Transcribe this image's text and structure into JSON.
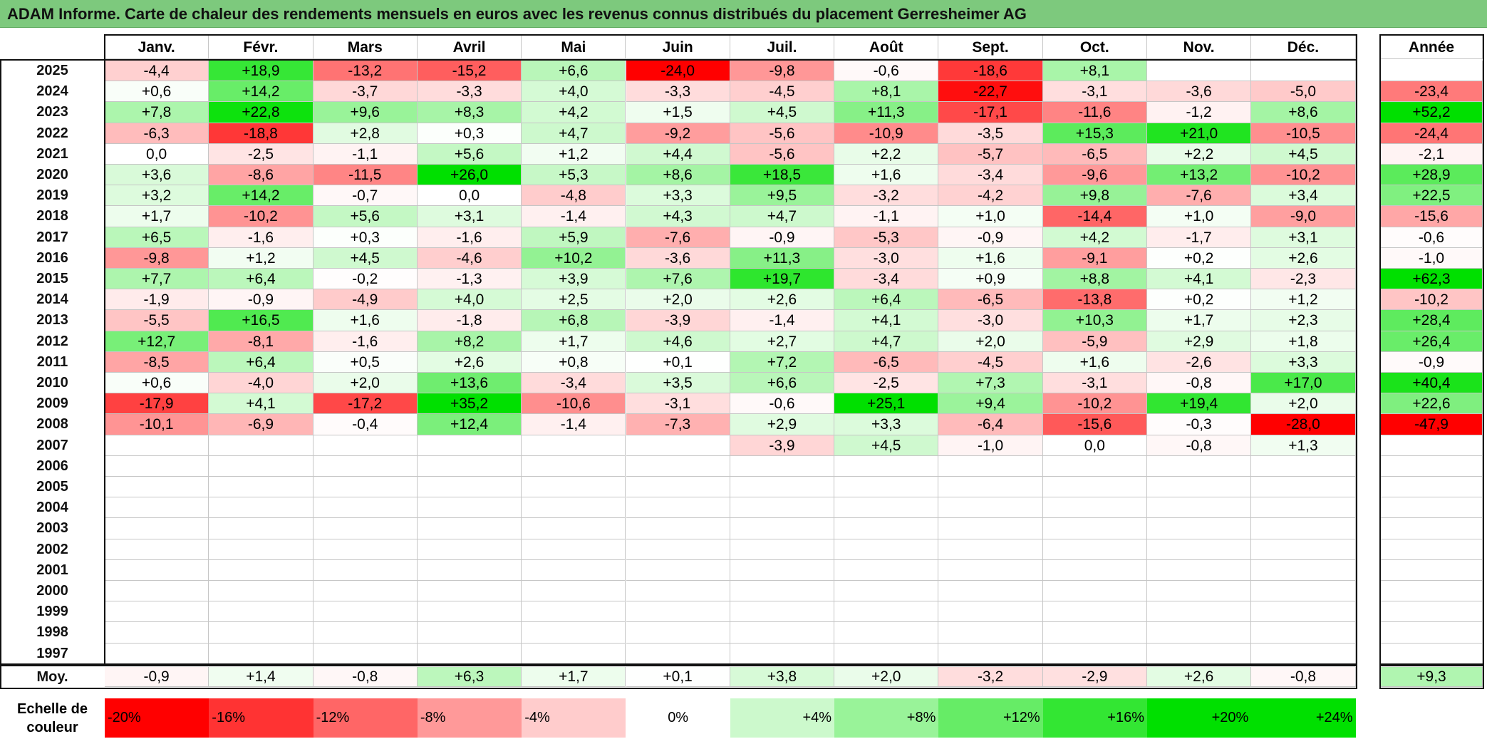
{
  "title": "ADAM Informe. Carte de chaleur des rendements mensuels en euros avec les revenus connus distribués du placement Gerresheimer AG",
  "chart_data": {
    "type": "heatmap",
    "months": [
      "Janv.",
      "Févr.",
      "Mars",
      "Avril",
      "Mai",
      "Juin",
      "Juil.",
      "Août",
      "Sept.",
      "Oct.",
      "Nov.",
      "Déc."
    ],
    "year_header": "Année",
    "rows": [
      {
        "year": "2025",
        "values": [
          "-4,4",
          "+18,9",
          "-13,2",
          "-15,2",
          "+6,6",
          "-24,0",
          "-9,8",
          "-0,6",
          "-18,6",
          "+8,1",
          "",
          ""
        ],
        "annual": ""
      },
      {
        "year": "2024",
        "values": [
          "+0,6",
          "+14,2",
          "-3,7",
          "-3,3",
          "+4,0",
          "-3,3",
          "-4,5",
          "+8,1",
          "-22,7",
          "-3,1",
          "-3,6",
          "-5,0"
        ],
        "annual": "-23,4"
      },
      {
        "year": "2023",
        "values": [
          "+7,8",
          "+22,8",
          "+9,6",
          "+8,3",
          "+4,2",
          "+1,5",
          "+4,5",
          "+11,3",
          "-17,1",
          "-11,6",
          "-1,2",
          "+8,6"
        ],
        "annual": "+52,2"
      },
      {
        "year": "2022",
        "values": [
          "-6,3",
          "-18,8",
          "+2,8",
          "+0,3",
          "+4,7",
          "-9,2",
          "-5,6",
          "-10,9",
          "-3,5",
          "+15,3",
          "+21,0",
          "-10,5"
        ],
        "annual": "-24,4"
      },
      {
        "year": "2021",
        "values": [
          "0,0",
          "-2,5",
          "-1,1",
          "+5,6",
          "+1,2",
          "+4,4",
          "-5,6",
          "+2,2",
          "-5,7",
          "-6,5",
          "+2,2",
          "+4,5"
        ],
        "annual": "-2,1"
      },
      {
        "year": "2020",
        "values": [
          "+3,6",
          "-8,6",
          "-11,5",
          "+26,0",
          "+5,3",
          "+8,6",
          "+18,5",
          "+1,6",
          "-3,4",
          "-9,6",
          "+13,2",
          "-10,2"
        ],
        "annual": "+28,9"
      },
      {
        "year": "2019",
        "values": [
          "+3,2",
          "+14,2",
          "-0,7",
          "0,0",
          "-4,8",
          "+3,3",
          "+9,5",
          "-3,2",
          "-4,2",
          "+9,8",
          "-7,6",
          "+3,4"
        ],
        "annual": "+22,5"
      },
      {
        "year": "2018",
        "values": [
          "+1,7",
          "-10,2",
          "+5,6",
          "+3,1",
          "-1,4",
          "+4,3",
          "+4,7",
          "-1,1",
          "+1,0",
          "-14,4",
          "+1,0",
          "-9,0"
        ],
        "annual": "-15,6"
      },
      {
        "year": "2017",
        "values": [
          "+6,5",
          "-1,6",
          "+0,3",
          "-1,6",
          "+5,9",
          "-7,6",
          "-0,9",
          "-5,3",
          "-0,9",
          "+4,2",
          "-1,7",
          "+3,1"
        ],
        "annual": "-0,6"
      },
      {
        "year": "2016",
        "values": [
          "-9,8",
          "+1,2",
          "+4,5",
          "-4,6",
          "+10,2",
          "-3,6",
          "+11,3",
          "-3,0",
          "+1,6",
          "-9,1",
          "+0,2",
          "+2,6"
        ],
        "annual": "-1,0"
      },
      {
        "year": "2015",
        "values": [
          "+7,7",
          "+6,4",
          "-0,2",
          "-1,3",
          "+3,9",
          "+7,6",
          "+19,7",
          "-3,4",
          "+0,9",
          "+8,8",
          "+4,1",
          "-2,3"
        ],
        "annual": "+62,3"
      },
      {
        "year": "2014",
        "values": [
          "-1,9",
          "-0,9",
          "-4,9",
          "+4,0",
          "+2,5",
          "+2,0",
          "+2,6",
          "+6,4",
          "-6,5",
          "-13,8",
          "+0,2",
          "+1,2"
        ],
        "annual": "-10,2"
      },
      {
        "year": "2013",
        "values": [
          "-5,5",
          "+16,5",
          "+1,6",
          "-1,8",
          "+6,8",
          "-3,9",
          "-1,4",
          "+4,1",
          "-3,0",
          "+10,3",
          "+1,7",
          "+2,3"
        ],
        "annual": "+28,4"
      },
      {
        "year": "2012",
        "values": [
          "+12,7",
          "-8,1",
          "-1,6",
          "+8,2",
          "+1,7",
          "+4,6",
          "+2,7",
          "+4,7",
          "+2,0",
          "-5,9",
          "+2,9",
          "+1,8"
        ],
        "annual": "+26,4"
      },
      {
        "year": "2011",
        "values": [
          "-8,5",
          "+6,4",
          "+0,5",
          "+2,6",
          "+0,8",
          "+0,1",
          "+7,2",
          "-6,5",
          "-4,5",
          "+1,6",
          "-2,6",
          "+3,3"
        ],
        "annual": "-0,9"
      },
      {
        "year": "2010",
        "values": [
          "+0,6",
          "-4,0",
          "+2,0",
          "+13,6",
          "-3,4",
          "+3,5",
          "+6,6",
          "-2,5",
          "+7,3",
          "-3,1",
          "-0,8",
          "+17,0"
        ],
        "annual": "+40,4"
      },
      {
        "year": "2009",
        "values": [
          "-17,9",
          "+4,1",
          "-17,2",
          "+35,2",
          "-10,6",
          "-3,1",
          "-0,6",
          "+25,1",
          "+9,4",
          "-10,2",
          "+19,4",
          "+2,0"
        ],
        "annual": "+22,6"
      },
      {
        "year": "2008",
        "values": [
          "-10,1",
          "-6,9",
          "-0,4",
          "+12,4",
          "-1,4",
          "-7,3",
          "+2,9",
          "+3,3",
          "-6,4",
          "-15,6",
          "-0,3",
          "-28,0"
        ],
        "annual": "-47,9"
      },
      {
        "year": "2007",
        "values": [
          "",
          "",
          "",
          "",
          "",
          "",
          "-3,9",
          "+4,5",
          "-1,0",
          "0,0",
          "-0,8",
          "+1,3"
        ],
        "annual": ""
      },
      {
        "year": "2006",
        "values": [
          "",
          "",
          "",
          "",
          "",
          "",
          "",
          "",
          "",
          "",
          "",
          ""
        ],
        "annual": ""
      },
      {
        "year": "2005",
        "values": [
          "",
          "",
          "",
          "",
          "",
          "",
          "",
          "",
          "",
          "",
          "",
          ""
        ],
        "annual": ""
      },
      {
        "year": "2004",
        "values": [
          "",
          "",
          "",
          "",
          "",
          "",
          "",
          "",
          "",
          "",
          "",
          ""
        ],
        "annual": ""
      },
      {
        "year": "2003",
        "values": [
          "",
          "",
          "",
          "",
          "",
          "",
          "",
          "",
          "",
          "",
          "",
          ""
        ],
        "annual": ""
      },
      {
        "year": "2002",
        "values": [
          "",
          "",
          "",
          "",
          "",
          "",
          "",
          "",
          "",
          "",
          "",
          ""
        ],
        "annual": ""
      },
      {
        "year": "2001",
        "values": [
          "",
          "",
          "",
          "",
          "",
          "",
          "",
          "",
          "",
          "",
          "",
          ""
        ],
        "annual": ""
      },
      {
        "year": "2000",
        "values": [
          "",
          "",
          "",
          "",
          "",
          "",
          "",
          "",
          "",
          "",
          "",
          ""
        ],
        "annual": ""
      },
      {
        "year": "1999",
        "values": [
          "",
          "",
          "",
          "",
          "",
          "",
          "",
          "",
          "",
          "",
          "",
          ""
        ],
        "annual": ""
      },
      {
        "year": "1998",
        "values": [
          "",
          "",
          "",
          "",
          "",
          "",
          "",
          "",
          "",
          "",
          "",
          ""
        ],
        "annual": ""
      },
      {
        "year": "1997",
        "values": [
          "",
          "",
          "",
          "",
          "",
          "",
          "",
          "",
          "",
          "",
          "",
          ""
        ],
        "annual": ""
      }
    ],
    "average": {
      "label": "Moy.",
      "values": [
        "-0,9",
        "+1,4",
        "-0,8",
        "+6,3",
        "+1,7",
        "+0,1",
        "+3,8",
        "+2,0",
        "-3,2",
        "-2,9",
        "+2,6",
        "-0,8"
      ],
      "annual": "+9,3"
    },
    "color_scale": {
      "label": "Echelle de couleur",
      "steps": [
        "-20%",
        "-16%",
        "-12%",
        "-8%",
        "-4%",
        "0%",
        "+4%",
        "+8%",
        "+12%",
        "+16%",
        "+20%",
        "+24%"
      ],
      "negative_color": "#ff0000",
      "neutral_color": "#ffffff",
      "positive_color": "#00e000"
    }
  }
}
